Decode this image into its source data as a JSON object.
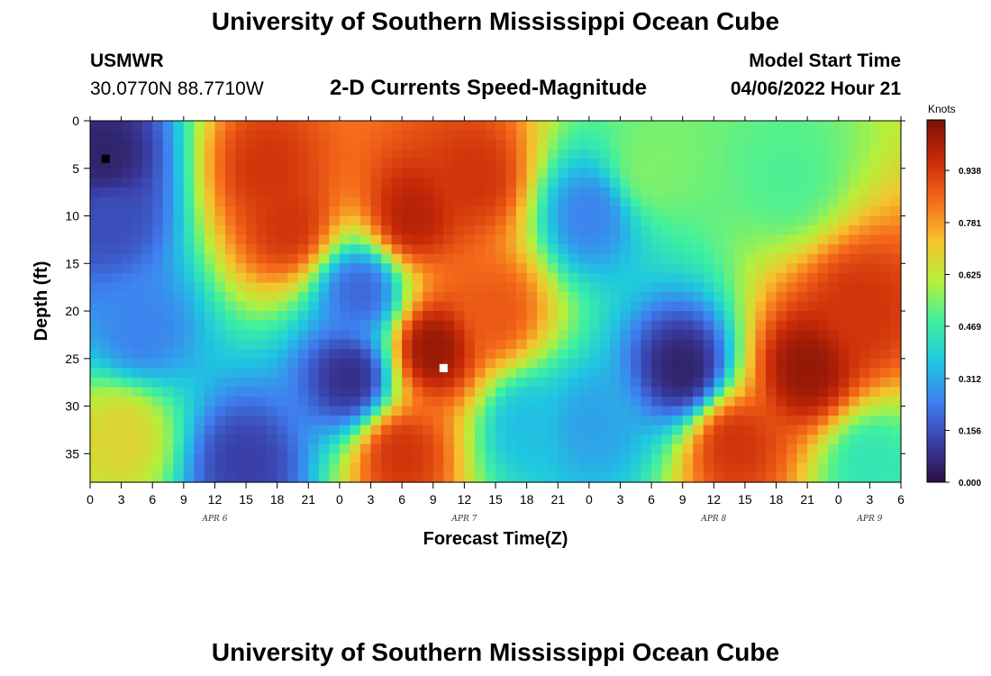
{
  "header": {
    "title": "University of Southern Mississippi Ocean Cube",
    "station": "USMWR",
    "coords": "30.0770N  88.7710W",
    "subtitle": "2-D Currents Speed-Magnitude",
    "model_start_label": "Model Start Time",
    "model_start_value": "04/06/2022 Hour 21"
  },
  "footer": {
    "title": "University of Southern Mississippi Ocean Cube"
  },
  "colorbar": {
    "unit": "Knots",
    "ticks": [
      "0.000",
      "0.156",
      "0.312",
      "0.469",
      "0.625",
      "0.781",
      "0.938"
    ],
    "tick_values": [
      0.0,
      0.156,
      0.312,
      0.469,
      0.625,
      0.781,
      0.938
    ],
    "max": 1.09,
    "colors": [
      "#2b1040",
      "#3a3fa8",
      "#3f7ff0",
      "#1fc7e0",
      "#3ff0a0",
      "#b5f03c",
      "#f5c22d",
      "#f56a1a",
      "#c92a08",
      "#7a1005"
    ]
  },
  "chart_data": {
    "type": "heatmap",
    "title": "2-D Currents Speed-Magnitude",
    "xlabel": "Forecast Time(Z)",
    "ylabel": "Depth (ft)",
    "x_tick_labels": [
      "0",
      "3",
      "6",
      "9",
      "12",
      "15",
      "18",
      "21",
      "0",
      "3",
      "6",
      "9",
      "12",
      "15",
      "18",
      "21",
      "0",
      "3",
      "6",
      "9",
      "12",
      "15",
      "18",
      "21",
      "0",
      "3",
      "6"
    ],
    "x_date_labels": [
      {
        "label": "APR 6",
        "hour_offset": 12
      },
      {
        "label": "APR 7",
        "hour_offset": 36
      },
      {
        "label": "APR 8",
        "hour_offset": 60
      },
      {
        "label": "APR 9",
        "hour_offset": 75
      }
    ],
    "xlim_hours": [
      0,
      78
    ],
    "y_ticks": [
      "0",
      "5",
      "10",
      "15",
      "20",
      "25",
      "30",
      "35"
    ],
    "y_tick_values": [
      0,
      5,
      10,
      15,
      20,
      25,
      30,
      35
    ],
    "ylim_ft": [
      0,
      38
    ],
    "y_inverted": true,
    "value_unit": "Knots",
    "vmin": 0.0,
    "vmax": 1.09,
    "blobs": [
      {
        "hour": 1.5,
        "depth": 4,
        "speed": 0.05
      },
      {
        "hour": 2,
        "depth": 10,
        "speed": 0.15
      },
      {
        "hour": 3,
        "depth": 33,
        "speed": 0.68
      },
      {
        "hour": 5,
        "depth": 22,
        "speed": 0.25
      },
      {
        "hour": 17,
        "depth": 5,
        "speed": 0.95
      },
      {
        "hour": 19,
        "depth": 11,
        "speed": 0.95
      },
      {
        "hour": 15,
        "depth": 36,
        "speed": 0.12
      },
      {
        "hour": 25,
        "depth": 27,
        "speed": 0.08
      },
      {
        "hour": 26,
        "depth": 18,
        "speed": 0.2
      },
      {
        "hour": 31,
        "depth": 10,
        "speed": 1.0
      },
      {
        "hour": 33,
        "depth": 24,
        "speed": 1.05
      },
      {
        "hour": 30,
        "depth": 35,
        "speed": 0.95
      },
      {
        "hour": 37,
        "depth": 6,
        "speed": 0.95
      },
      {
        "hour": 39,
        "depth": 20,
        "speed": 0.88
      },
      {
        "hour": 42,
        "depth": 32,
        "speed": 0.35
      },
      {
        "hour": 48,
        "depth": 10,
        "speed": 0.25
      },
      {
        "hour": 48,
        "depth": 32,
        "speed": 0.3
      },
      {
        "hour": 54,
        "depth": 5,
        "speed": 0.55
      },
      {
        "hour": 57,
        "depth": 26,
        "speed": 0.05
      },
      {
        "hour": 62,
        "depth": 34,
        "speed": 0.95
      },
      {
        "hour": 69,
        "depth": 26,
        "speed": 1.05
      },
      {
        "hour": 74,
        "depth": 20,
        "speed": 0.95
      },
      {
        "hour": 67,
        "depth": 6,
        "speed": 0.5
      },
      {
        "hour": 75,
        "depth": 36,
        "speed": 0.45
      }
    ],
    "markers": [
      {
        "hour": 1.5,
        "depth": 4,
        "color": "#000000"
      },
      {
        "hour": 34,
        "depth": 26,
        "color": "#ffffff"
      }
    ]
  }
}
